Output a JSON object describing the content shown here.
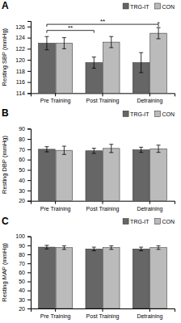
{
  "chart_data": [
    {
      "type": "bar",
      "title": "A",
      "y_label": "Resting SBP (mmHg)",
      "categories": [
        "Pre Training",
        "Post Training",
        "Detraining"
      ],
      "series": [
        {
          "name": "TRG-IT",
          "color": "#666666",
          "values": [
            123.0,
            119.5,
            119.5
          ],
          "errors": [
            1.2,
            1.0,
            1.8
          ]
        },
        {
          "name": "CON",
          "color": "#bbbbbb",
          "values": [
            123.0,
            123.2,
            124.8
          ],
          "errors": [
            1.0,
            1.0,
            1.0
          ]
        }
      ],
      "ylim": [
        114,
        127
      ],
      "yticks": [
        114,
        116,
        118,
        120,
        122,
        124,
        126
      ],
      "legend": "upper right",
      "grid": false,
      "annotations": [
        {
          "text": "**",
          "y": 125.3,
          "from": [
            "Pre Training",
            "TRG-IT"
          ],
          "to": [
            "Post Training",
            "TRG-IT"
          ]
        },
        {
          "text": "**",
          "y": 126.4,
          "from": [
            "Pre Training",
            "TRG-IT"
          ],
          "to": [
            "Detraining",
            "CON"
          ]
        },
        {
          "text": "*",
          "at": [
            "Detraining",
            "CON"
          ]
        }
      ]
    },
    {
      "type": "bar",
      "title": "B",
      "y_label": "Resting DBP (mmHg)",
      "categories": [
        "Pre Training",
        "Post Training",
        "Detraining"
      ],
      "series": [
        {
          "name": "TRG-IT",
          "color": "#666666",
          "values": [
            70.0,
            68.5,
            69.5
          ],
          "errors": [
            2.5,
            2.5,
            2.5
          ]
        },
        {
          "name": "CON",
          "color": "#bbbbbb",
          "values": [
            69.0,
            70.8,
            70.5
          ],
          "errors": [
            4.0,
            4.0,
            3.5
          ]
        }
      ],
      "ylim": [
        20,
        90
      ],
      "yticks": [
        20,
        30,
        40,
        50,
        60,
        70,
        80,
        90
      ],
      "legend": "upper right",
      "grid": false
    },
    {
      "type": "bar",
      "title": "C",
      "y_label": "Resting MAP (mmHg)",
      "categories": [
        "Pre Training",
        "Post Training",
        "Detraining"
      ],
      "series": [
        {
          "name": "TRG-IT",
          "color": "#666666",
          "values": [
            88.0,
            86.0,
            86.0
          ],
          "errors": [
            2.0,
            2.0,
            2.0
          ]
        },
        {
          "name": "CON",
          "color": "#bbbbbb",
          "values": [
            87.5,
            87.5,
            87.5
          ],
          "errors": [
            2.0,
            2.0,
            2.0
          ]
        }
      ],
      "ylim": [
        20,
        100
      ],
      "yticks": [
        20,
        30,
        40,
        50,
        60,
        70,
        80,
        90,
        100
      ],
      "legend": "upper right",
      "grid": false
    }
  ]
}
